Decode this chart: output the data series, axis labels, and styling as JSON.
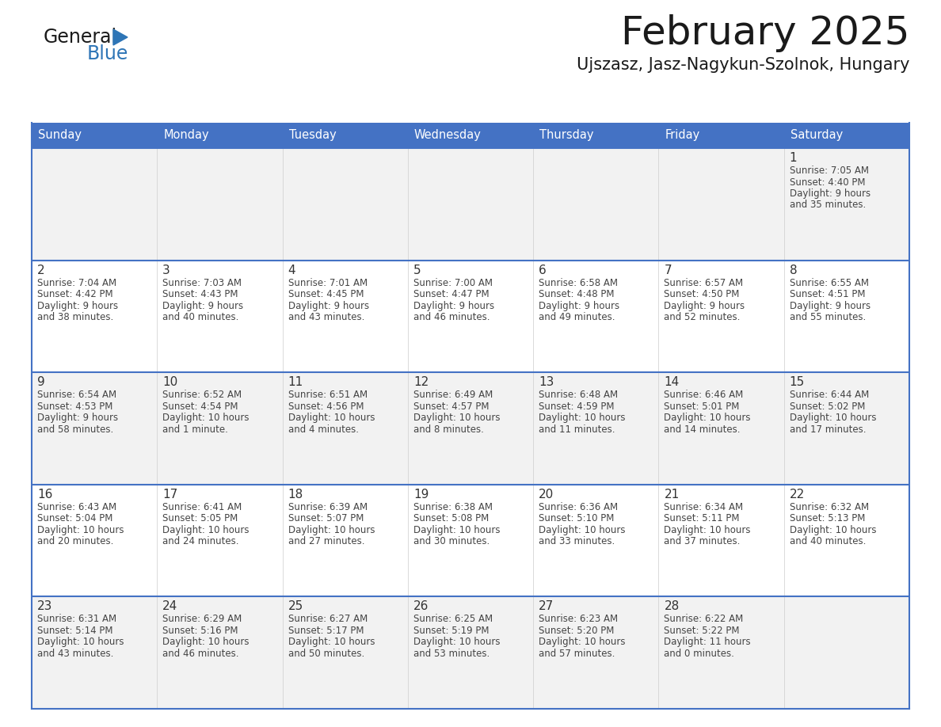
{
  "title": "February 2025",
  "subtitle": "Ujszasz, Jasz-Nagykun-Szolnok, Hungary",
  "days_of_week": [
    "Sunday",
    "Monday",
    "Tuesday",
    "Wednesday",
    "Thursday",
    "Friday",
    "Saturday"
  ],
  "header_bg": "#4472C4",
  "header_text": "#FFFFFF",
  "cell_bg_odd": "#F2F2F2",
  "cell_bg_even": "#FFFFFF",
  "border_color": "#4472C4",
  "day_num_color": "#333333",
  "info_text_color": "#444444",
  "title_color": "#1a1a1a",
  "subtitle_color": "#1a1a1a",
  "logo_general_color": "#1a1a1a",
  "logo_blue_color": "#2E75B6",
  "calendar_data": [
    [
      null,
      null,
      null,
      null,
      null,
      null,
      {
        "day": 1,
        "sunrise": "7:05 AM",
        "sunset": "4:40 PM",
        "daylight_line1": "Daylight: 9 hours",
        "daylight_line2": "and 35 minutes."
      }
    ],
    [
      {
        "day": 2,
        "sunrise": "7:04 AM",
        "sunset": "4:42 PM",
        "daylight_line1": "Daylight: 9 hours",
        "daylight_line2": "and 38 minutes."
      },
      {
        "day": 3,
        "sunrise": "7:03 AM",
        "sunset": "4:43 PM",
        "daylight_line1": "Daylight: 9 hours",
        "daylight_line2": "and 40 minutes."
      },
      {
        "day": 4,
        "sunrise": "7:01 AM",
        "sunset": "4:45 PM",
        "daylight_line1": "Daylight: 9 hours",
        "daylight_line2": "and 43 minutes."
      },
      {
        "day": 5,
        "sunrise": "7:00 AM",
        "sunset": "4:47 PM",
        "daylight_line1": "Daylight: 9 hours",
        "daylight_line2": "and 46 minutes."
      },
      {
        "day": 6,
        "sunrise": "6:58 AM",
        "sunset": "4:48 PM",
        "daylight_line1": "Daylight: 9 hours",
        "daylight_line2": "and 49 minutes."
      },
      {
        "day": 7,
        "sunrise": "6:57 AM",
        "sunset": "4:50 PM",
        "daylight_line1": "Daylight: 9 hours",
        "daylight_line2": "and 52 minutes."
      },
      {
        "day": 8,
        "sunrise": "6:55 AM",
        "sunset": "4:51 PM",
        "daylight_line1": "Daylight: 9 hours",
        "daylight_line2": "and 55 minutes."
      }
    ],
    [
      {
        "day": 9,
        "sunrise": "6:54 AM",
        "sunset": "4:53 PM",
        "daylight_line1": "Daylight: 9 hours",
        "daylight_line2": "and 58 minutes."
      },
      {
        "day": 10,
        "sunrise": "6:52 AM",
        "sunset": "4:54 PM",
        "daylight_line1": "Daylight: 10 hours",
        "daylight_line2": "and 1 minute."
      },
      {
        "day": 11,
        "sunrise": "6:51 AM",
        "sunset": "4:56 PM",
        "daylight_line1": "Daylight: 10 hours",
        "daylight_line2": "and 4 minutes."
      },
      {
        "day": 12,
        "sunrise": "6:49 AM",
        "sunset": "4:57 PM",
        "daylight_line1": "Daylight: 10 hours",
        "daylight_line2": "and 8 minutes."
      },
      {
        "day": 13,
        "sunrise": "6:48 AM",
        "sunset": "4:59 PM",
        "daylight_line1": "Daylight: 10 hours",
        "daylight_line2": "and 11 minutes."
      },
      {
        "day": 14,
        "sunrise": "6:46 AM",
        "sunset": "5:01 PM",
        "daylight_line1": "Daylight: 10 hours",
        "daylight_line2": "and 14 minutes."
      },
      {
        "day": 15,
        "sunrise": "6:44 AM",
        "sunset": "5:02 PM",
        "daylight_line1": "Daylight: 10 hours",
        "daylight_line2": "and 17 minutes."
      }
    ],
    [
      {
        "day": 16,
        "sunrise": "6:43 AM",
        "sunset": "5:04 PM",
        "daylight_line1": "Daylight: 10 hours",
        "daylight_line2": "and 20 minutes."
      },
      {
        "day": 17,
        "sunrise": "6:41 AM",
        "sunset": "5:05 PM",
        "daylight_line1": "Daylight: 10 hours",
        "daylight_line2": "and 24 minutes."
      },
      {
        "day": 18,
        "sunrise": "6:39 AM",
        "sunset": "5:07 PM",
        "daylight_line1": "Daylight: 10 hours",
        "daylight_line2": "and 27 minutes."
      },
      {
        "day": 19,
        "sunrise": "6:38 AM",
        "sunset": "5:08 PM",
        "daylight_line1": "Daylight: 10 hours",
        "daylight_line2": "and 30 minutes."
      },
      {
        "day": 20,
        "sunrise": "6:36 AM",
        "sunset": "5:10 PM",
        "daylight_line1": "Daylight: 10 hours",
        "daylight_line2": "and 33 minutes."
      },
      {
        "day": 21,
        "sunrise": "6:34 AM",
        "sunset": "5:11 PM",
        "daylight_line1": "Daylight: 10 hours",
        "daylight_line2": "and 37 minutes."
      },
      {
        "day": 22,
        "sunrise": "6:32 AM",
        "sunset": "5:13 PM",
        "daylight_line1": "Daylight: 10 hours",
        "daylight_line2": "and 40 minutes."
      }
    ],
    [
      {
        "day": 23,
        "sunrise": "6:31 AM",
        "sunset": "5:14 PM",
        "daylight_line1": "Daylight: 10 hours",
        "daylight_line2": "and 43 minutes."
      },
      {
        "day": 24,
        "sunrise": "6:29 AM",
        "sunset": "5:16 PM",
        "daylight_line1": "Daylight: 10 hours",
        "daylight_line2": "and 46 minutes."
      },
      {
        "day": 25,
        "sunrise": "6:27 AM",
        "sunset": "5:17 PM",
        "daylight_line1": "Daylight: 10 hours",
        "daylight_line2": "and 50 minutes."
      },
      {
        "day": 26,
        "sunrise": "6:25 AM",
        "sunset": "5:19 PM",
        "daylight_line1": "Daylight: 10 hours",
        "daylight_line2": "and 53 minutes."
      },
      {
        "day": 27,
        "sunrise": "6:23 AM",
        "sunset": "5:20 PM",
        "daylight_line1": "Daylight: 10 hours",
        "daylight_line2": "and 57 minutes."
      },
      {
        "day": 28,
        "sunrise": "6:22 AM",
        "sunset": "5:22 PM",
        "daylight_line1": "Daylight: 11 hours",
        "daylight_line2": "and 0 minutes."
      },
      null
    ]
  ]
}
